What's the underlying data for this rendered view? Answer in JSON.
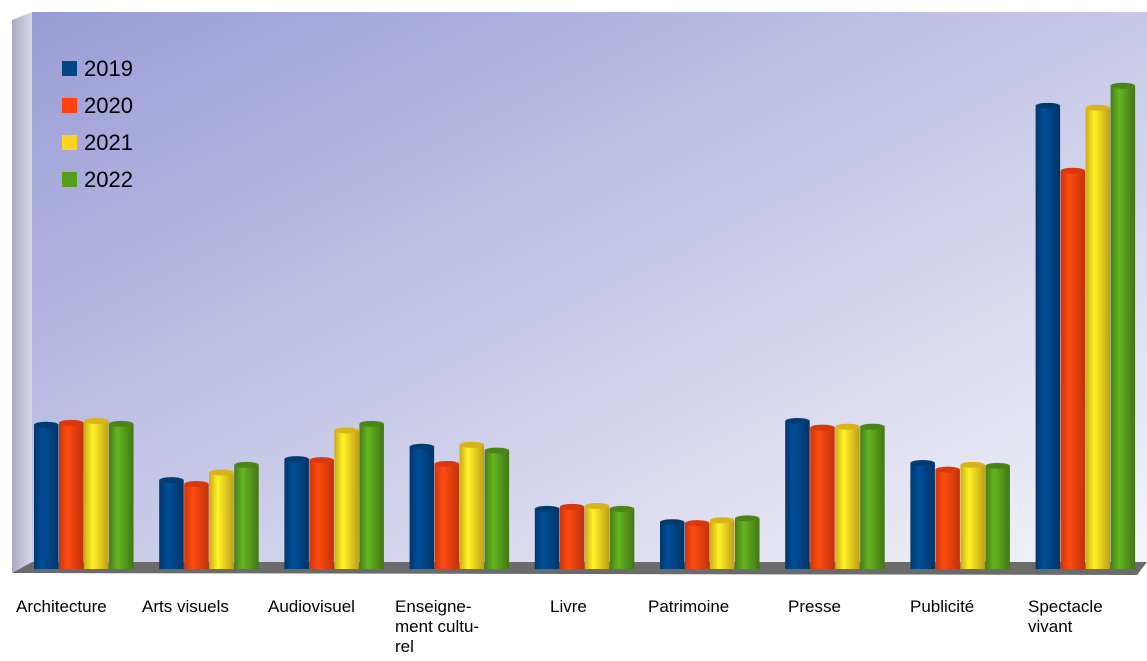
{
  "chart_data": {
    "type": "bar",
    "categories": [
      "Architecture",
      "Arts visuels",
      "Audiovisuel",
      "Enseigne-\nment cultu-\nrel",
      "Livre",
      "Patrimoine",
      "Presse",
      "Publicité",
      "Spectacle\nvivant"
    ],
    "series": [
      {
        "name": "2019",
        "color": "#004586",
        "values": [
          151,
          93,
          115,
          128,
          63,
          49,
          155,
          111,
          485
        ]
      },
      {
        "name": "2020",
        "color": "#ff420e",
        "values": [
          153,
          89,
          114,
          110,
          65,
          48,
          148,
          104,
          417
        ]
      },
      {
        "name": "2021",
        "color": "#ffd320",
        "values": [
          155,
          101,
          145,
          130,
          66,
          51,
          149,
          109,
          483
        ]
      },
      {
        "name": "2022",
        "color": "#579d1c",
        "values": [
          152,
          109,
          152,
          124,
          63,
          53,
          149,
          108,
          506
        ]
      }
    ],
    "ylim": [
      0,
      550
    ],
    "legend": "top-left",
    "grid": false
  }
}
